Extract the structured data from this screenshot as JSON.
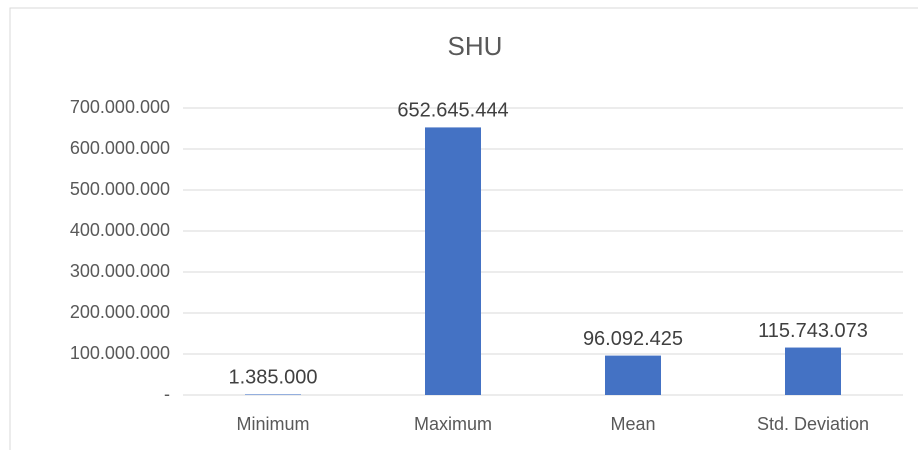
{
  "chart_data": {
    "type": "bar",
    "title": "SHU",
    "categories": [
      "Minimum",
      "Maximum",
      "Mean",
      "Std. Deviation"
    ],
    "values": [
      1385000,
      652645444,
      96092425,
      115743073
    ],
    "value_labels": [
      "1.385.000",
      "652.645.444",
      "96.092.425",
      "115.743.073"
    ],
    "color": "#4472c4",
    "ylim": [
      0,
      700000000
    ],
    "yticks": [
      {
        "value": 0,
        "label": "-"
      },
      {
        "value": 100000000,
        "label": "100.000.000"
      },
      {
        "value": 200000000,
        "label": "200.000.000"
      },
      {
        "value": 300000000,
        "label": "300.000.000"
      },
      {
        "value": 400000000,
        "label": "400.000.000"
      },
      {
        "value": 500000000,
        "label": "500.000.000"
      },
      {
        "value": 600000000,
        "label": "600.000.000"
      },
      {
        "value": 700000000,
        "label": "700.000.000"
      }
    ],
    "grid": true
  }
}
